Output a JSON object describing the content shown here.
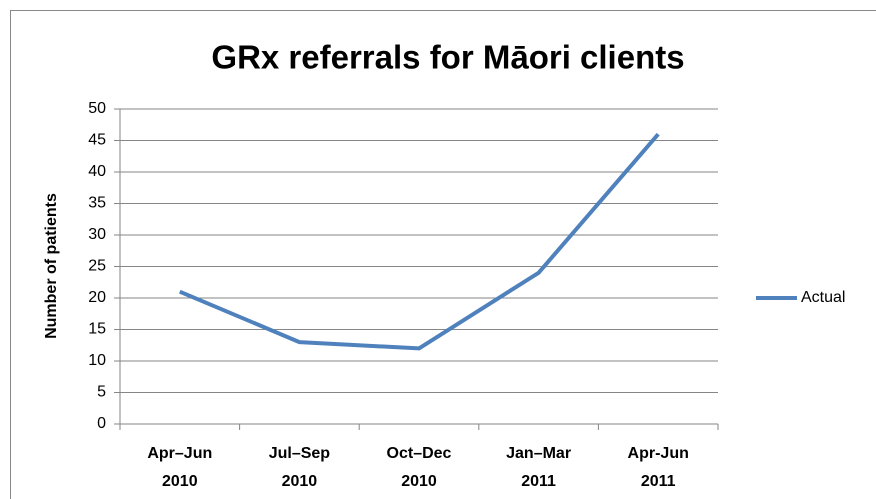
{
  "chart_data": {
    "type": "line",
    "title": "GRx referrals for Māori clients",
    "y_label": "Number of patients",
    "categories": [
      "Apr–Jun 2010",
      "Jul–Sep 2010",
      "Oct–Dec 2010",
      "Jan–Mar 2011",
      "Apr-Jun 2011"
    ],
    "series": [
      {
        "name": "Actual",
        "color": "#4f81bd",
        "values": [
          21,
          13,
          12,
          24,
          46
        ]
      }
    ],
    "ylim": [
      0,
      50
    ],
    "yticks": [
      0,
      5,
      10,
      15,
      20,
      25,
      30,
      35,
      40,
      45,
      50
    ],
    "grid": true,
    "legend": "right"
  }
}
